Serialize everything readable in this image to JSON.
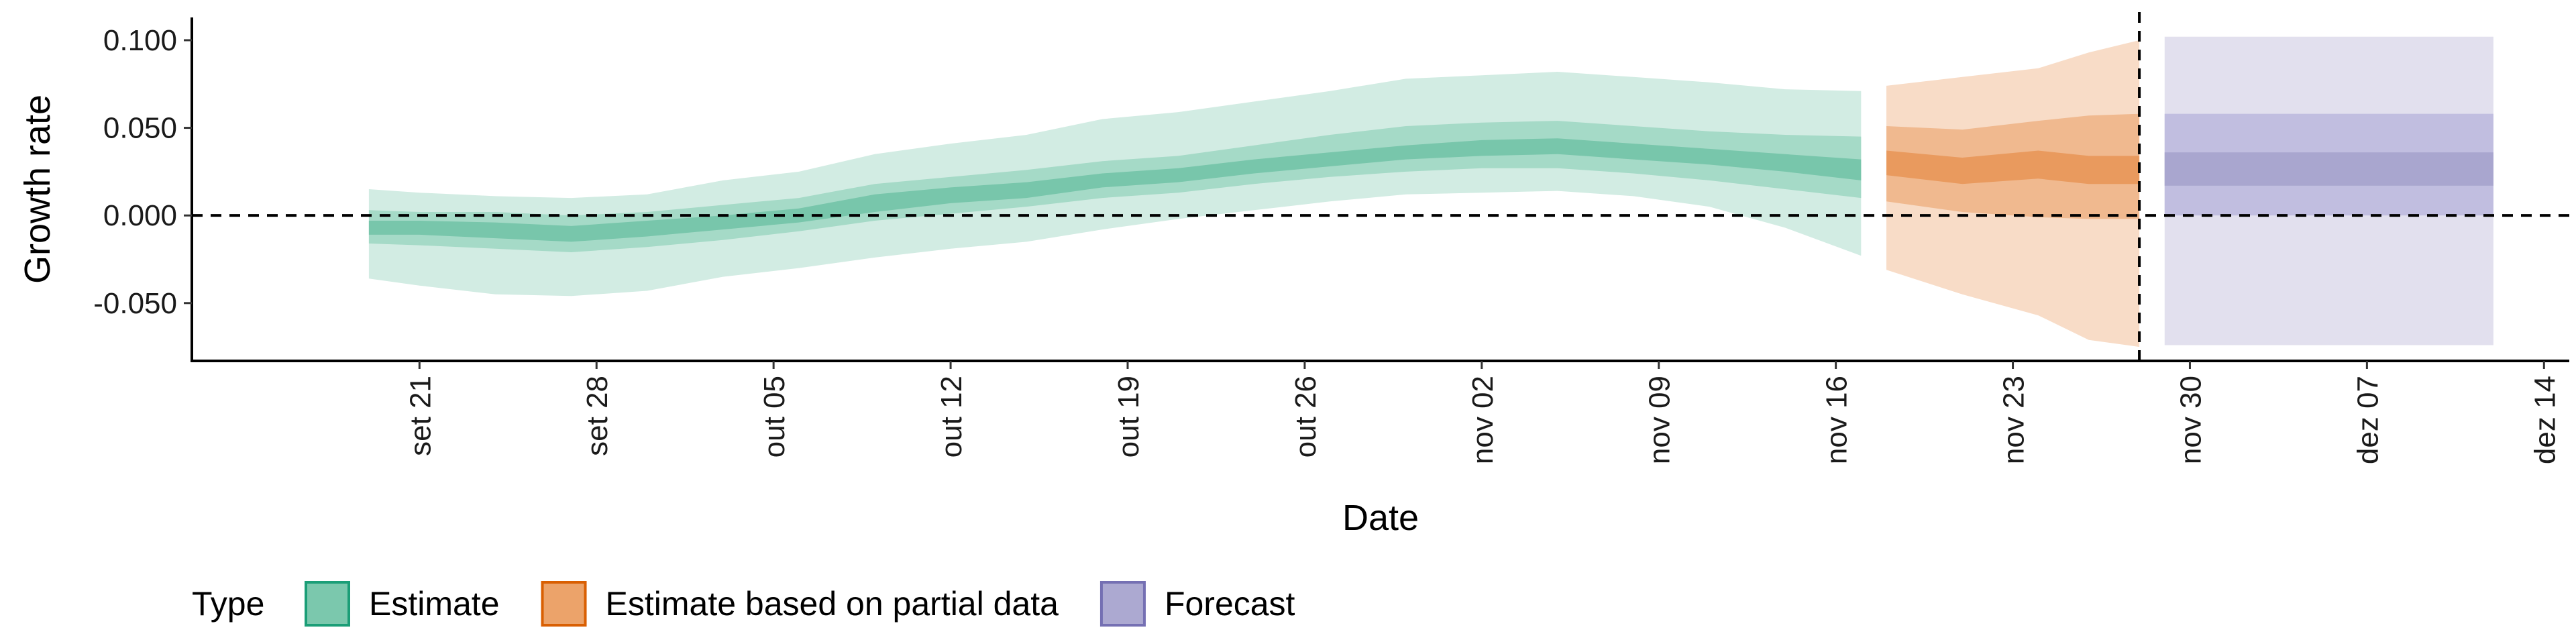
{
  "chart_data": {
    "type": "area",
    "title": "",
    "xlabel": "Date",
    "ylabel": "Growth rate",
    "x_range": [
      "2020-09-12",
      "2020-12-15"
    ],
    "ylim": [
      -0.083,
      0.113
    ],
    "y_ticks": [
      {
        "value": 0.1,
        "label": "0.100"
      },
      {
        "value": 0.05,
        "label": "0.050"
      },
      {
        "value": 0.0,
        "label": "0.000"
      },
      {
        "value": -0.05,
        "label": "-0.050"
      }
    ],
    "x_ticks": [
      {
        "date": "2020-09-21",
        "label": "set 21"
      },
      {
        "date": "2020-09-28",
        "label": "set 28"
      },
      {
        "date": "2020-10-05",
        "label": "out 05"
      },
      {
        "date": "2020-10-12",
        "label": "out 12"
      },
      {
        "date": "2020-10-19",
        "label": "out 19"
      },
      {
        "date": "2020-10-26",
        "label": "out 26"
      },
      {
        "date": "2020-11-02",
        "label": "nov 02"
      },
      {
        "date": "2020-11-09",
        "label": "nov 09"
      },
      {
        "date": "2020-11-16",
        "label": "nov 16"
      },
      {
        "date": "2020-11-23",
        "label": "nov 23"
      },
      {
        "date": "2020-11-30",
        "label": "nov 30"
      },
      {
        "date": "2020-12-07",
        "label": "dez 07"
      },
      {
        "date": "2020-12-14",
        "label": "dez 14"
      }
    ],
    "reference_lines": [
      {
        "orientation": "horizontal",
        "value": 0.0,
        "style": "dashed"
      },
      {
        "orientation": "vertical",
        "date": "2020-11-28",
        "style": "dashed"
      }
    ],
    "grid": false,
    "legend": {
      "title": "Type",
      "placement": "bottom",
      "entries": [
        {
          "label": "Estimate",
          "fill": "#7bc8ad",
          "stroke": "#1b9e77"
        },
        {
          "label": "Estimate based on partial data",
          "fill": "#eca36a",
          "stroke": "#d95f02"
        },
        {
          "label": "Forecast",
          "fill": "#aca9d1",
          "stroke": "#7570b3"
        }
      ]
    },
    "series": [
      {
        "type": "Estimate",
        "colors": {
          "outer": "#d2ece3",
          "mid": "#a5dac7",
          "inner": "#78c6ab"
        },
        "points": [
          {
            "x": "2020-09-19",
            "lo90": -0.036,
            "lo50": -0.016,
            "lo20": -0.011,
            "median": -0.007,
            "hi20": -0.003,
            "hi50": 0.003,
            "hi90": 0.015
          },
          {
            "x": "2020-09-21",
            "lo90": -0.04,
            "lo50": -0.017,
            "lo20": -0.011,
            "median": -0.007,
            "hi20": -0.003,
            "hi50": 0.002,
            "hi90": 0.013
          },
          {
            "x": "2020-09-24",
            "lo90": -0.045,
            "lo50": -0.019,
            "lo20": -0.013,
            "median": -0.008,
            "hi20": -0.004,
            "hi50": 0.002,
            "hi90": 0.011
          },
          {
            "x": "2020-09-27",
            "lo90": -0.046,
            "lo50": -0.021,
            "lo20": -0.015,
            "median": -0.01,
            "hi20": -0.006,
            "hi50": 0.0,
            "hi90": 0.01
          },
          {
            "x": "2020-09-30",
            "lo90": -0.043,
            "lo50": -0.018,
            "lo20": -0.012,
            "median": -0.007,
            "hi20": -0.003,
            "hi50": 0.002,
            "hi90": 0.012
          },
          {
            "x": "2020-10-03",
            "lo90": -0.035,
            "lo50": -0.014,
            "lo20": -0.008,
            "median": -0.004,
            "hi20": 0.0,
            "hi50": 0.006,
            "hi90": 0.02
          },
          {
            "x": "2020-10-06",
            "lo90": -0.03,
            "lo50": -0.009,
            "lo20": -0.004,
            "median": 0.0,
            "hi20": 0.004,
            "hi50": 0.01,
            "hi90": 0.025
          },
          {
            "x": "2020-10-09",
            "lo90": -0.024,
            "lo50": -0.003,
            "lo20": 0.002,
            "median": 0.007,
            "hi20": 0.012,
            "hi50": 0.018,
            "hi90": 0.035
          },
          {
            "x": "2020-10-12",
            "lo90": -0.019,
            "lo50": 0.001,
            "lo20": 0.007,
            "median": 0.012,
            "hi20": 0.016,
            "hi50": 0.022,
            "hi90": 0.041
          },
          {
            "x": "2020-10-15",
            "lo90": -0.015,
            "lo50": 0.005,
            "lo20": 0.01,
            "median": 0.015,
            "hi20": 0.019,
            "hi50": 0.026,
            "hi90": 0.046
          },
          {
            "x": "2020-10-18",
            "lo90": -0.008,
            "lo50": 0.01,
            "lo20": 0.016,
            "median": 0.02,
            "hi20": 0.024,
            "hi50": 0.031,
            "hi90": 0.055
          },
          {
            "x": "2020-10-21",
            "lo90": -0.002,
            "lo50": 0.013,
            "lo20": 0.019,
            "median": 0.023,
            "hi20": 0.027,
            "hi50": 0.034,
            "hi90": 0.059
          },
          {
            "x": "2020-10-24",
            "lo90": 0.003,
            "lo50": 0.018,
            "lo20": 0.024,
            "median": 0.028,
            "hi20": 0.032,
            "hi50": 0.04,
            "hi90": 0.065
          },
          {
            "x": "2020-10-27",
            "lo90": 0.008,
            "lo50": 0.022,
            "lo20": 0.028,
            "median": 0.032,
            "hi20": 0.036,
            "hi50": 0.046,
            "hi90": 0.071
          },
          {
            "x": "2020-10-30",
            "lo90": 0.012,
            "lo50": 0.025,
            "lo20": 0.032,
            "median": 0.036,
            "hi20": 0.04,
            "hi50": 0.051,
            "hi90": 0.078
          },
          {
            "x": "2020-11-02",
            "lo90": 0.013,
            "lo50": 0.027,
            "lo20": 0.034,
            "median": 0.039,
            "hi20": 0.043,
            "hi50": 0.053,
            "hi90": 0.08
          },
          {
            "x": "2020-11-05",
            "lo90": 0.014,
            "lo50": 0.027,
            "lo20": 0.035,
            "median": 0.04,
            "hi20": 0.044,
            "hi50": 0.054,
            "hi90": 0.082
          },
          {
            "x": "2020-11-08",
            "lo90": 0.011,
            "lo50": 0.024,
            "lo20": 0.032,
            "median": 0.037,
            "hi20": 0.041,
            "hi50": 0.051,
            "hi90": 0.079
          },
          {
            "x": "2020-11-11",
            "lo90": 0.005,
            "lo50": 0.02,
            "lo20": 0.029,
            "median": 0.034,
            "hi20": 0.038,
            "hi50": 0.048,
            "hi90": 0.076
          },
          {
            "x": "2020-11-14",
            "lo90": -0.007,
            "lo50": 0.015,
            "lo20": 0.025,
            "median": 0.03,
            "hi20": 0.035,
            "hi50": 0.046,
            "hi90": 0.072
          },
          {
            "x": "2020-11-17",
            "lo90": -0.023,
            "lo50": 0.01,
            "lo20": 0.02,
            "median": 0.026,
            "hi20": 0.032,
            "hi50": 0.045,
            "hi90": 0.071
          }
        ]
      },
      {
        "type": "Estimate based on partial data",
        "colors": {
          "outer": "#f8dcc7",
          "mid": "#f0b98f",
          "inner": "#e99a5e"
        },
        "points": [
          {
            "x": "2020-11-18",
            "lo90": -0.031,
            "lo50": 0.008,
            "lo20": 0.023,
            "median": 0.03,
            "hi20": 0.037,
            "hi50": 0.051,
            "hi90": 0.074
          },
          {
            "x": "2020-11-21",
            "lo90": -0.045,
            "lo50": 0.002,
            "lo20": 0.018,
            "median": 0.026,
            "hi20": 0.033,
            "hi50": 0.049,
            "hi90": 0.079
          },
          {
            "x": "2020-11-24",
            "lo90": -0.057,
            "lo50": -0.001,
            "lo20": 0.021,
            "median": 0.028,
            "hi20": 0.037,
            "hi50": 0.054,
            "hi90": 0.084
          },
          {
            "x": "2020-11-26",
            "lo90": -0.071,
            "lo50": -0.002,
            "lo20": 0.018,
            "median": 0.027,
            "hi20": 0.034,
            "hi50": 0.057,
            "hi90": 0.093
          },
          {
            "x": "2020-11-28",
            "lo90": -0.075,
            "lo50": -0.002,
            "lo20": 0.018,
            "median": 0.026,
            "hi20": 0.034,
            "hi50": 0.058,
            "hi90": 0.1
          }
        ]
      },
      {
        "type": "Forecast",
        "colors": {
          "outer": "#e2e0ee",
          "mid": "#c1bee0",
          "inner": "#a9a6cf"
        },
        "start": "2020-11-29",
        "end": "2020-12-12",
        "lo90": -0.074,
        "lo50": 0.0,
        "lo20": 0.017,
        "hi20": 0.036,
        "hi50": 0.058,
        "hi90": 0.102
      }
    ]
  }
}
